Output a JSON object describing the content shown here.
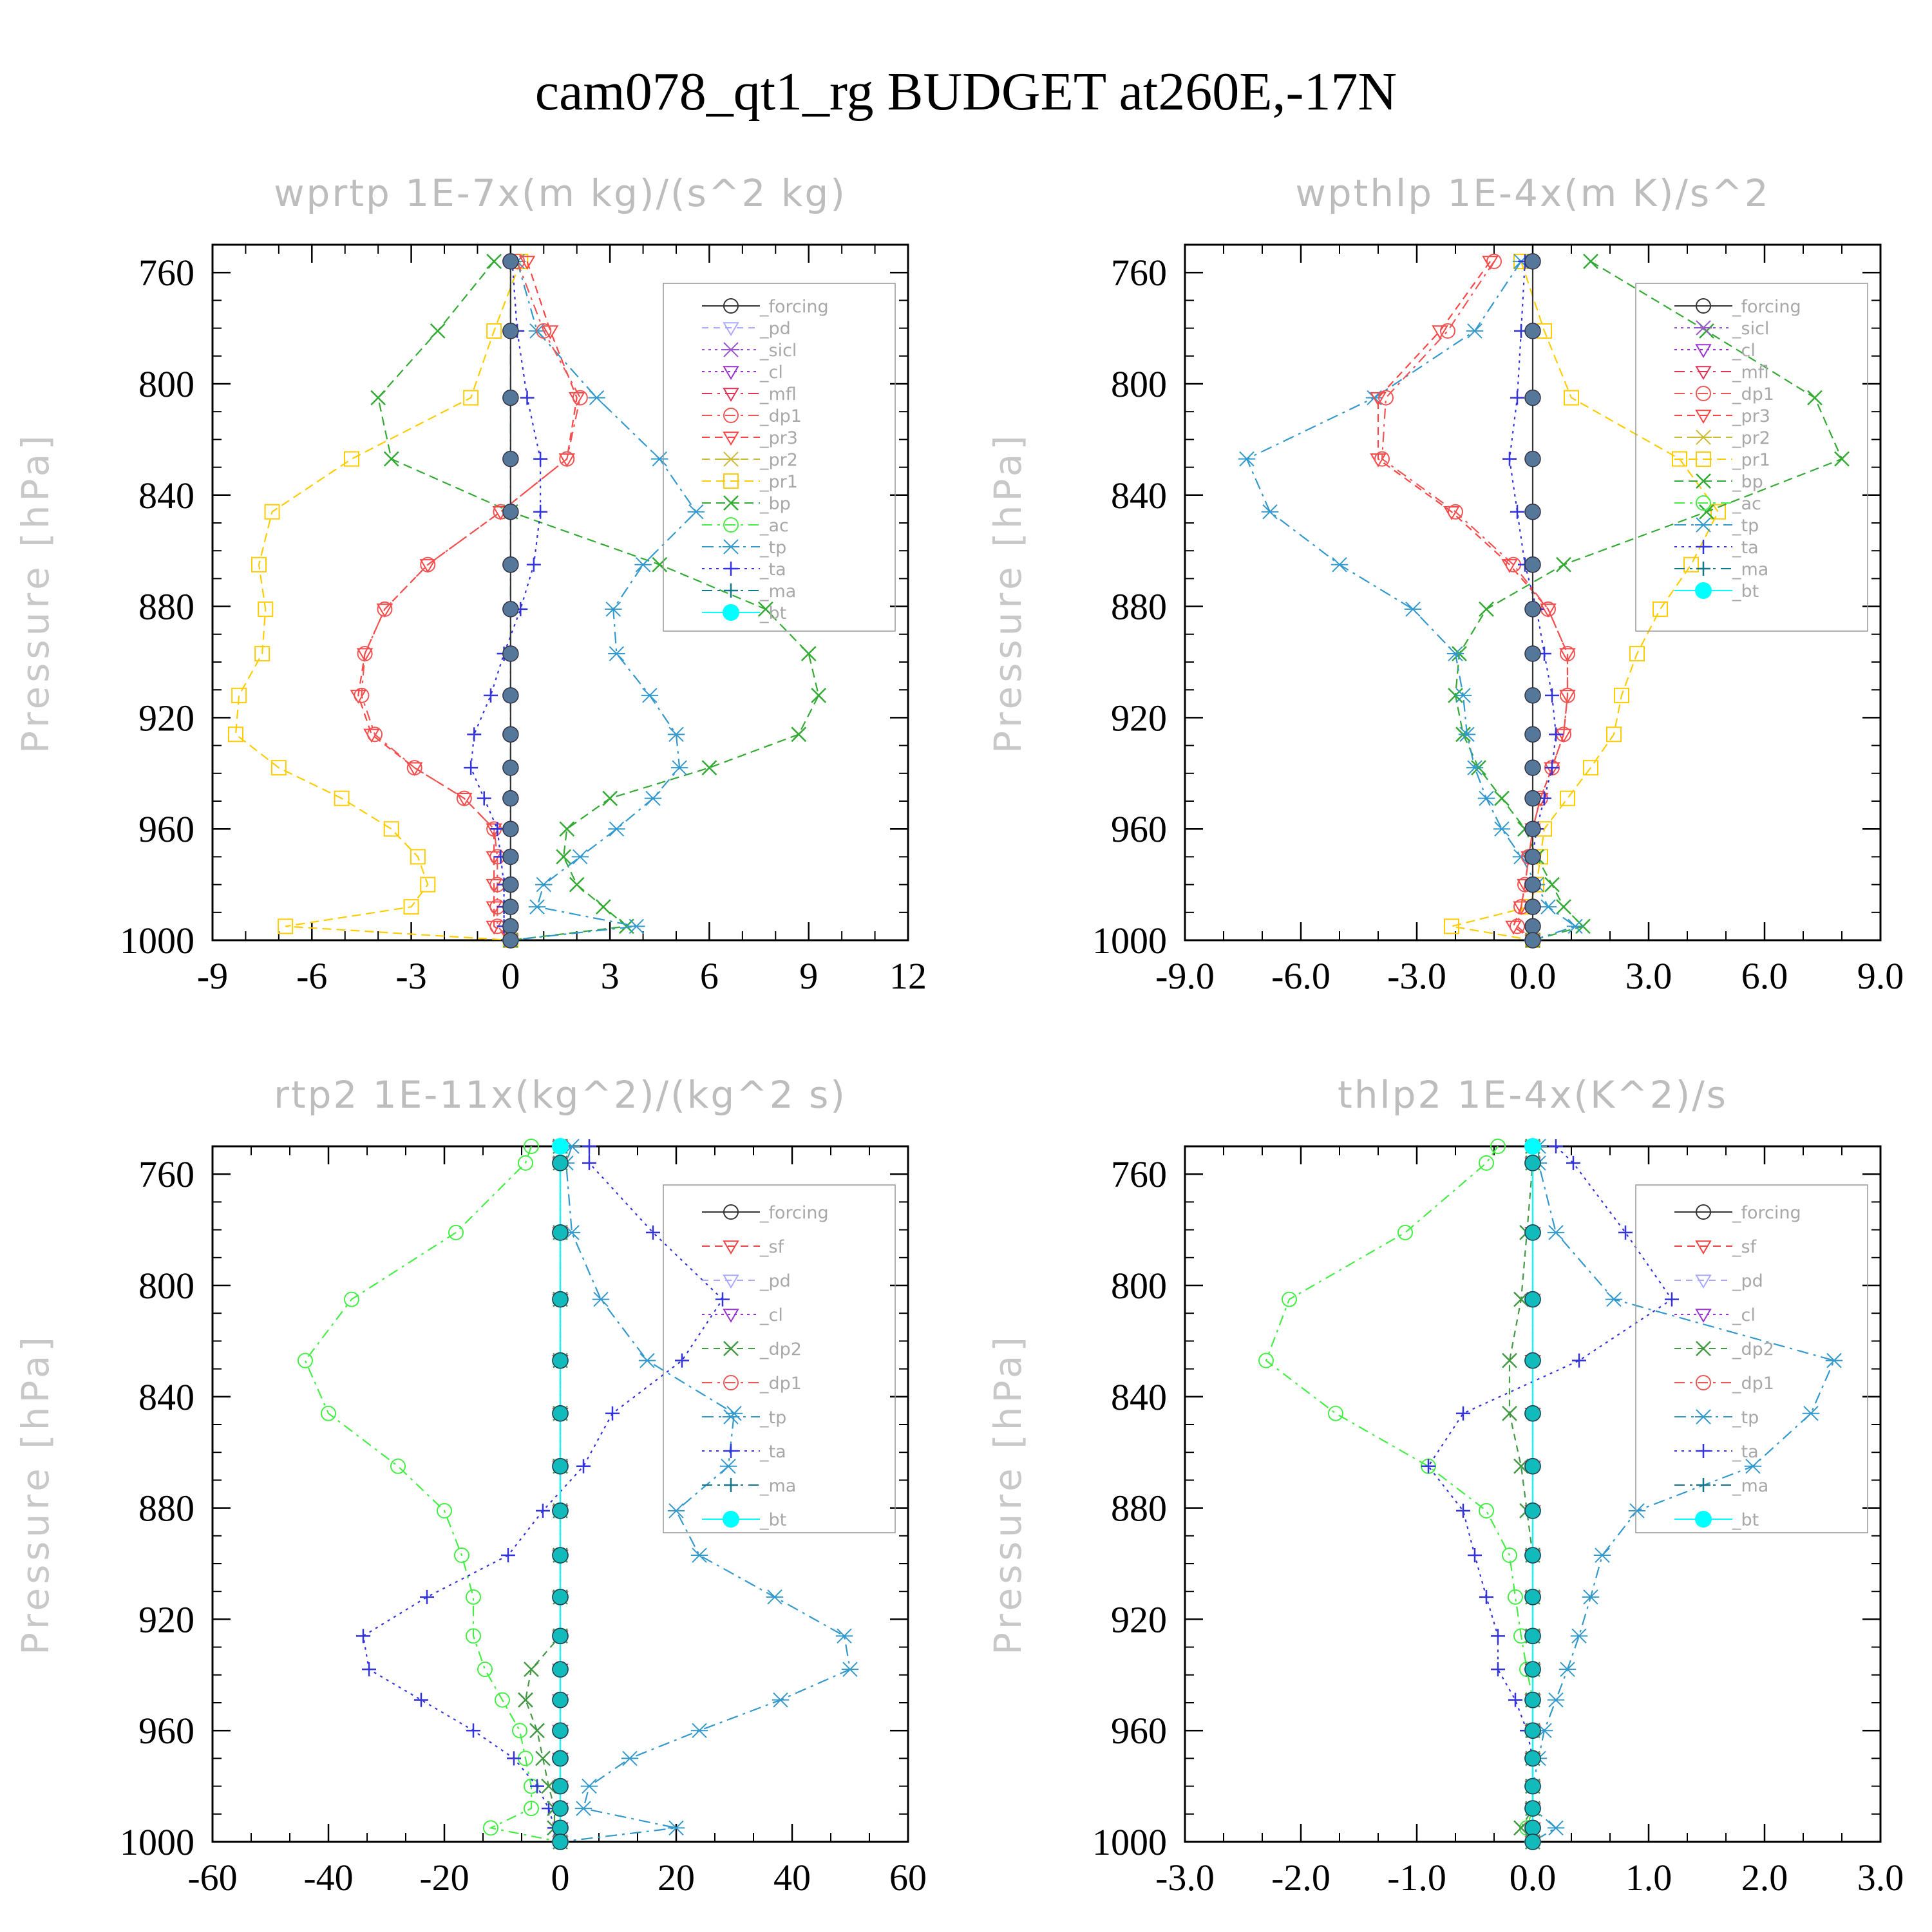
{
  "title": "cam078_qt1_rg  BUDGET at260E,-17N",
  "colors": {
    "forcing": "#333333",
    "pd": "#aaaaff",
    "sicl": "#9955cc",
    "cl": "#9933cc",
    "mfl": "#dd3355",
    "dp1": "#ee5555",
    "pr3": "#ff4444",
    "pr2": "#ccbb33",
    "pr1": "#ffcc00",
    "bp": "#33aa33",
    "ac": "#44ee44",
    "tp": "#3399cc",
    "ta": "#3333dd",
    "ma": "#117788",
    "bt": "#00ffff",
    "sf": "#ee4444",
    "dp2": "#449944"
  },
  "chart_data": [
    {
      "type": "line",
      "title": "wprtp  1E-7x(m kg)/(s^2 kg)",
      "ylabel": "Pressure [hPa]",
      "xlim": [
        -9,
        12
      ],
      "ylim": [
        1000,
        750
      ],
      "y_inverted": true,
      "xticks": [
        "-9",
        "-6",
        "-3",
        "0",
        "3",
        "6",
        "9",
        "12"
      ],
      "xtick_values": [
        -9,
        -6,
        -3,
        0,
        3,
        6,
        9,
        12
      ],
      "yticks": [
        "760",
        "800",
        "840",
        "880",
        "920",
        "960",
        "1000"
      ],
      "ytick_values": [
        760,
        800,
        840,
        880,
        920,
        960,
        1000
      ],
      "legend": [
        "_forcing",
        "_pd",
        "_sicl",
        "_cl",
        "_mfl",
        "_dp1",
        "_pr3",
        "_pr2",
        "_pr1",
        "_bp",
        "_ac",
        "_tp",
        "_ta",
        "_ma",
        "_bt"
      ],
      "legend_position": "top-right",
      "pressure": [
        756,
        781,
        805,
        827,
        846,
        865,
        881,
        897,
        912,
        926,
        938,
        949,
        960,
        970,
        980,
        988,
        995,
        1000
      ],
      "series": [
        {
          "name": "_pr1",
          "color_key": "pr1",
          "values": [
            0.3,
            -0.5,
            -1.2,
            -4.8,
            -7.2,
            -7.6,
            -7.4,
            -7.5,
            -8.2,
            -8.3,
            -7,
            -5.1,
            -3.6,
            -2.8,
            -2.5,
            -3,
            -6.8,
            0
          ]
        },
        {
          "name": "_bp",
          "color_key": "bp",
          "values": [
            -0.5,
            -2.2,
            -4,
            -3.6,
            0,
            4.5,
            7.7,
            9,
            9.3,
            8.7,
            6,
            3,
            1.7,
            1.6,
            2,
            2.8,
            3.5,
            0
          ]
        },
        {
          "name": "_tp",
          "color_key": "tp",
          "values": [
            0.2,
            0.8,
            2.6,
            4.5,
            5.6,
            4,
            3.1,
            3.2,
            4.2,
            5,
            5.1,
            4.3,
            3.2,
            2.1,
            1,
            0.8,
            3.8,
            0
          ]
        },
        {
          "name": "_pr3",
          "color_key": "pr3",
          "values": [
            0.5,
            1.2,
            2,
            1.7,
            -0.3,
            -2.5,
            -3.8,
            -4.4,
            -4.6,
            -4.2,
            -2.9,
            -1.4,
            -0.5,
            -0.5,
            -0.5,
            -0.5,
            -0.5,
            0
          ]
        },
        {
          "name": "_dp1",
          "color_key": "dp1",
          "values": [
            0.2,
            1,
            2.1,
            1.7,
            -0.3,
            -2.5,
            -3.8,
            -4.4,
            -4.5,
            -4.1,
            -2.9,
            -1.4,
            -0.5,
            -0.4,
            -0.4,
            -0.4,
            -0.4,
            0
          ]
        },
        {
          "name": "_ta",
          "color_key": "ta",
          "values": [
            0.05,
            0.2,
            0.5,
            0.9,
            0.9,
            0.7,
            0.3,
            -0.2,
            -0.6,
            -1.1,
            -1.2,
            -0.8,
            -0.4,
            -0.3,
            -0.2,
            -0.2,
            -0.2,
            0
          ]
        },
        {
          "name": "_ma",
          "color_key": "ma",
          "values": [
            0,
            0,
            0,
            0,
            0,
            0,
            0,
            0,
            0,
            0,
            0,
            0,
            0,
            0,
            0,
            0,
            0,
            0
          ]
        },
        {
          "name": "_forcing",
          "color_key": "forcing",
          "values": [
            0,
            0,
            0,
            0,
            0,
            0,
            0,
            0,
            0,
            0,
            0,
            0,
            0,
            0,
            0,
            0,
            0,
            0
          ]
        }
      ]
    },
    {
      "type": "line",
      "title": "wpthlp  1E-4x(m K)/s^2",
      "ylabel": "Pressure [hPa]",
      "xlim": [
        -9,
        9
      ],
      "ylim": [
        1000,
        750
      ],
      "y_inverted": true,
      "xticks": [
        "-9.0",
        "-6.0",
        "-3.0",
        "0.0",
        "3.0",
        "6.0",
        "9.0"
      ],
      "xtick_values": [
        -9,
        -6,
        -3,
        0,
        3,
        6,
        9
      ],
      "yticks": [
        "760",
        "800",
        "840",
        "880",
        "920",
        "960",
        "1000"
      ],
      "ytick_values": [
        760,
        800,
        840,
        880,
        920,
        960,
        1000
      ],
      "legend": [
        "_forcing",
        "_sicl",
        "_cl",
        "_mfl",
        "_dp1",
        "_pr3",
        "_pr2",
        "_pr1",
        "_bp",
        "_ac",
        "_tp",
        "_ta",
        "_ma",
        "_bt"
      ],
      "legend_position": "top-right",
      "pressure": [
        756,
        781,
        805,
        827,
        846,
        865,
        881,
        897,
        912,
        926,
        938,
        949,
        960,
        970,
        980,
        988,
        995,
        1000
      ],
      "series": [
        {
          "name": "_pr1",
          "color_key": "pr1",
          "values": [
            -0.3,
            0.3,
            1,
            3.8,
            4.8,
            4.1,
            3.3,
            2.7,
            2.3,
            2.1,
            1.5,
            0.9,
            0.3,
            0.2,
            0.1,
            -0.1,
            -2.1,
            0
          ]
        },
        {
          "name": "_bp",
          "color_key": "bp",
          "values": [
            1.5,
            4.5,
            7.3,
            8,
            4.5,
            0.8,
            -1.2,
            -1.9,
            -2,
            -1.8,
            -1.4,
            -0.8,
            -0.2,
            0.1,
            0.5,
            0.8,
            1.3,
            0
          ]
        },
        {
          "name": "_tp",
          "color_key": "tp",
          "values": [
            -0.3,
            -1.5,
            -4.1,
            -7.4,
            -6.8,
            -5,
            -3.1,
            -2,
            -1.8,
            -1.7,
            -1.5,
            -1.2,
            -0.8,
            -0.3,
            0.1,
            0.4,
            1.1,
            0
          ]
        },
        {
          "name": "_pr3",
          "color_key": "pr3",
          "values": [
            -1.1,
            -2.4,
            -4,
            -4,
            -2.1,
            -0.6,
            0.4,
            0.9,
            0.9,
            0.8,
            0.5,
            0.2,
            0,
            -0.1,
            -0.2,
            -0.3,
            -0.5,
            0
          ]
        },
        {
          "name": "_dp1",
          "color_key": "dp1",
          "values": [
            -1,
            -2.2,
            -3.8,
            -3.9,
            -2,
            -0.5,
            0.4,
            0.9,
            0.9,
            0.8,
            0.5,
            0.2,
            0,
            -0.1,
            -0.2,
            -0.3,
            -0.4,
            0
          ]
        },
        {
          "name": "_ta",
          "color_key": "ta",
          "values": [
            -0.2,
            -0.3,
            -0.4,
            -0.6,
            -0.4,
            -0.2,
            0.1,
            0.3,
            0.5,
            0.6,
            0.5,
            0.3,
            0.1,
            0,
            0,
            0,
            0,
            0
          ]
        },
        {
          "name": "_forcing",
          "color_key": "forcing",
          "values": [
            0,
            0,
            0,
            0,
            0,
            0,
            0,
            0,
            0,
            0,
            0,
            0,
            0,
            0,
            0,
            0,
            0,
            0
          ]
        }
      ]
    },
    {
      "type": "line",
      "title": "rtp2  1E-11x(kg^2)/(kg^2 s)",
      "ylabel": "Pressure [hPa]",
      "xlim": [
        -60,
        60
      ],
      "ylim": [
        1000,
        750
      ],
      "y_inverted": true,
      "xticks": [
        "-60",
        "-40",
        "-20",
        "0",
        "20",
        "40",
        "60"
      ],
      "xtick_values": [
        -60,
        -40,
        -20,
        0,
        20,
        40,
        60
      ],
      "yticks": [
        "760",
        "800",
        "840",
        "880",
        "920",
        "960",
        "1000"
      ],
      "ytick_values": [
        760,
        800,
        840,
        880,
        920,
        960,
        1000
      ],
      "legend": [
        "_forcing",
        "_sf",
        "_pd",
        "_cl",
        "_dp2",
        "_dp1",
        "_tp",
        "_ta",
        "_ma",
        "_bt"
      ],
      "legend_position": "top-right",
      "pressure": [
        750,
        756,
        781,
        805,
        827,
        846,
        865,
        881,
        897,
        912,
        926,
        938,
        949,
        960,
        970,
        980,
        988,
        995,
        1000
      ],
      "series": [
        {
          "name": "_dp1",
          "color_key": "ac",
          "values": [
            -5,
            -6,
            -18,
            -36,
            -44,
            -40,
            -28,
            -20,
            -17,
            -15,
            -15,
            -13,
            -10,
            -7,
            -6,
            -5,
            -5,
            -12,
            0
          ]
        },
        {
          "name": "_tp",
          "color_key": "tp",
          "values": [
            2,
            1,
            2,
            7,
            15,
            30,
            29,
            20,
            24,
            37,
            49,
            50,
            38,
            24,
            12,
            5,
            4,
            20,
            0
          ]
        },
        {
          "name": "_ta",
          "color_key": "ta",
          "values": [
            5,
            5,
            16,
            28,
            21,
            9,
            4,
            -3,
            -9,
            -23,
            -34,
            -33,
            -24,
            -15,
            -8,
            -4,
            -2,
            -1,
            0
          ]
        },
        {
          "name": "_dp2",
          "color_key": "dp2",
          "values": [
            0,
            0,
            0,
            0,
            0,
            0,
            0,
            0,
            0,
            0,
            0,
            -5,
            -6,
            -4,
            -3,
            -2,
            -1,
            -1,
            0
          ]
        },
        {
          "name": "_forcing",
          "color_key": "mfl",
          "values": [
            0,
            0,
            0,
            0,
            0,
            0,
            0,
            0,
            0,
            0,
            0,
            0,
            0,
            0,
            0,
            0,
            0,
            0,
            0
          ]
        },
        {
          "name": "_bt",
          "color_key": "bt",
          "values": [
            0,
            0,
            0,
            0,
            0,
            0,
            0,
            0,
            0,
            0,
            0,
            0,
            0,
            0,
            0,
            0,
            0,
            0,
            0
          ]
        }
      ]
    },
    {
      "type": "line",
      "title": "thlp2  1E-4x(K^2)/s",
      "ylabel": "Pressure [hPa]",
      "xlim": [
        -3,
        3
      ],
      "ylim": [
        1000,
        750
      ],
      "y_inverted": true,
      "xticks": [
        "-3.0",
        "-2.0",
        "-1.0",
        "0.0",
        "1.0",
        "2.0",
        "3.0"
      ],
      "xtick_values": [
        -3,
        -2,
        -1,
        0,
        1,
        2,
        3
      ],
      "yticks": [
        "760",
        "800",
        "840",
        "880",
        "920",
        "960",
        "1000"
      ],
      "ytick_values": [
        760,
        800,
        840,
        880,
        920,
        960,
        1000
      ],
      "legend": [
        "_forcing",
        "_sf",
        "_pd",
        "_cl",
        "_dp2",
        "_dp1",
        "_tp",
        "_ta",
        "_ma",
        "_bt"
      ],
      "legend_position": "top-right",
      "pressure": [
        750,
        756,
        781,
        805,
        827,
        846,
        865,
        881,
        897,
        912,
        926,
        938,
        949,
        960,
        970,
        980,
        988,
        995,
        1000
      ],
      "series": [
        {
          "name": "_dp1",
          "color_key": "ac",
          "values": [
            -0.3,
            -0.4,
            -1.1,
            -2.1,
            -2.3,
            -1.7,
            -0.9,
            -0.4,
            -0.2,
            -0.15,
            -0.1,
            -0.05,
            0,
            0,
            0,
            0,
            0,
            -0.05,
            0
          ]
        },
        {
          "name": "_tp",
          "color_key": "tp",
          "values": [
            0.05,
            0.05,
            0.2,
            0.7,
            2.6,
            2.4,
            1.9,
            0.9,
            0.6,
            0.5,
            0.4,
            0.3,
            0.2,
            0.1,
            0.05,
            0,
            0,
            0.2,
            0
          ]
        },
        {
          "name": "_ta",
          "color_key": "ta",
          "values": [
            0.2,
            0.35,
            0.8,
            1.2,
            0.4,
            -0.6,
            -0.9,
            -0.6,
            -0.5,
            -0.4,
            -0.3,
            -0.3,
            -0.15,
            -0.05,
            0,
            0,
            0,
            0,
            0
          ]
        },
        {
          "name": "_dp2",
          "color_key": "dp2",
          "values": [
            0,
            0,
            -0.05,
            -0.1,
            -0.2,
            -0.2,
            -0.1,
            -0.05,
            0,
            0,
            0,
            0,
            0,
            0,
            0,
            0,
            0,
            -0.1,
            0
          ]
        },
        {
          "name": "_forcing",
          "color_key": "mfl",
          "values": [
            0,
            0,
            0,
            0,
            0,
            0,
            0,
            0,
            0,
            0,
            0,
            0,
            0,
            0,
            0,
            0,
            0,
            0,
            0
          ]
        },
        {
          "name": "_bt",
          "color_key": "bt",
          "values": [
            0,
            0,
            0,
            0,
            0,
            0,
            0,
            0,
            0,
            0,
            0,
            0,
            0,
            0,
            0,
            0,
            0,
            0,
            0
          ]
        }
      ]
    }
  ],
  "legend_colors": {
    "_forcing": "forcing",
    "_pd": "pd",
    "_sicl": "sicl",
    "_cl": "cl",
    "_mfl": "mfl",
    "_dp1": "dp1",
    "_pr3": "pr3",
    "_pr2": "pr2",
    "_pr1": "pr1",
    "_bp": "bp",
    "_ac": "ac",
    "_tp": "tp",
    "_ta": "ta",
    "_ma": "ma",
    "_bt": "bt",
    "_sf": "sf",
    "_dp2": "dp2"
  }
}
